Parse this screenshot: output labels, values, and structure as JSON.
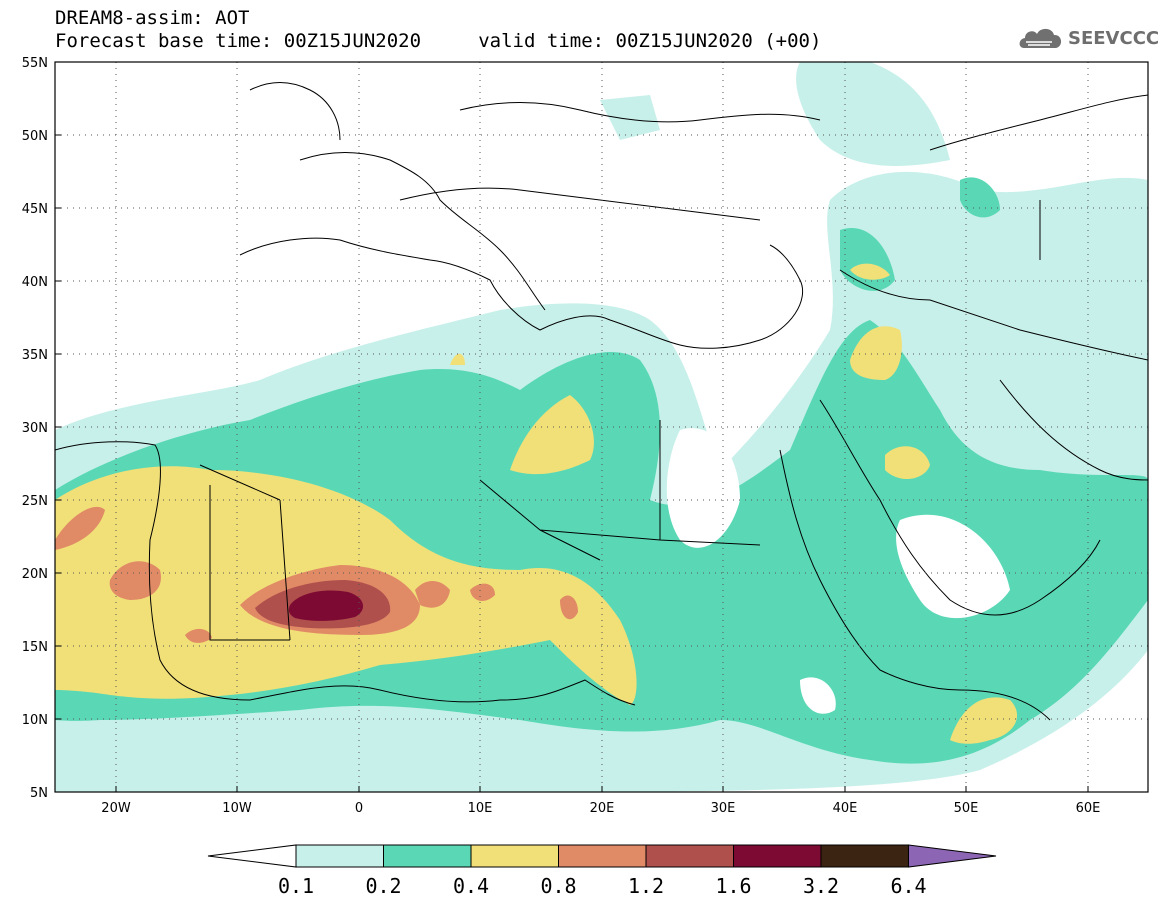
{
  "title": {
    "line1": "DREAM8-assim: AOT",
    "line2": "Forecast base time: 00Z15JUN2020     valid time: 00Z15JUN2020 (+00)"
  },
  "logo": {
    "text": "SEEVCCC",
    "icon": "cloud-icon"
  },
  "map": {
    "lon_range": [
      -25,
      65
    ],
    "lat_range": [
      5,
      55
    ],
    "grid": "dotted",
    "lat_ticks": [
      "55N",
      "50N",
      "45N",
      "40N",
      "35N",
      "30N",
      "25N",
      "20N",
      "15N",
      "10N",
      "5N"
    ],
    "lon_ticks": [
      "20W",
      "10W",
      "0",
      "10E",
      "20E",
      "30E",
      "40E",
      "50E",
      "60E"
    ]
  },
  "colorbar": {
    "levels": [
      "0.1",
      "0.2",
      "0.4",
      "0.8",
      "1.2",
      "1.6",
      "3.2",
      "6.4"
    ],
    "colors": [
      "#ffffff",
      "#c8f0ea",
      "#5ad8b6",
      "#f1e078",
      "#e08a66",
      "#b0504c",
      "#7d0a33",
      "#3c2412",
      "#8c66b4"
    ]
  }
}
